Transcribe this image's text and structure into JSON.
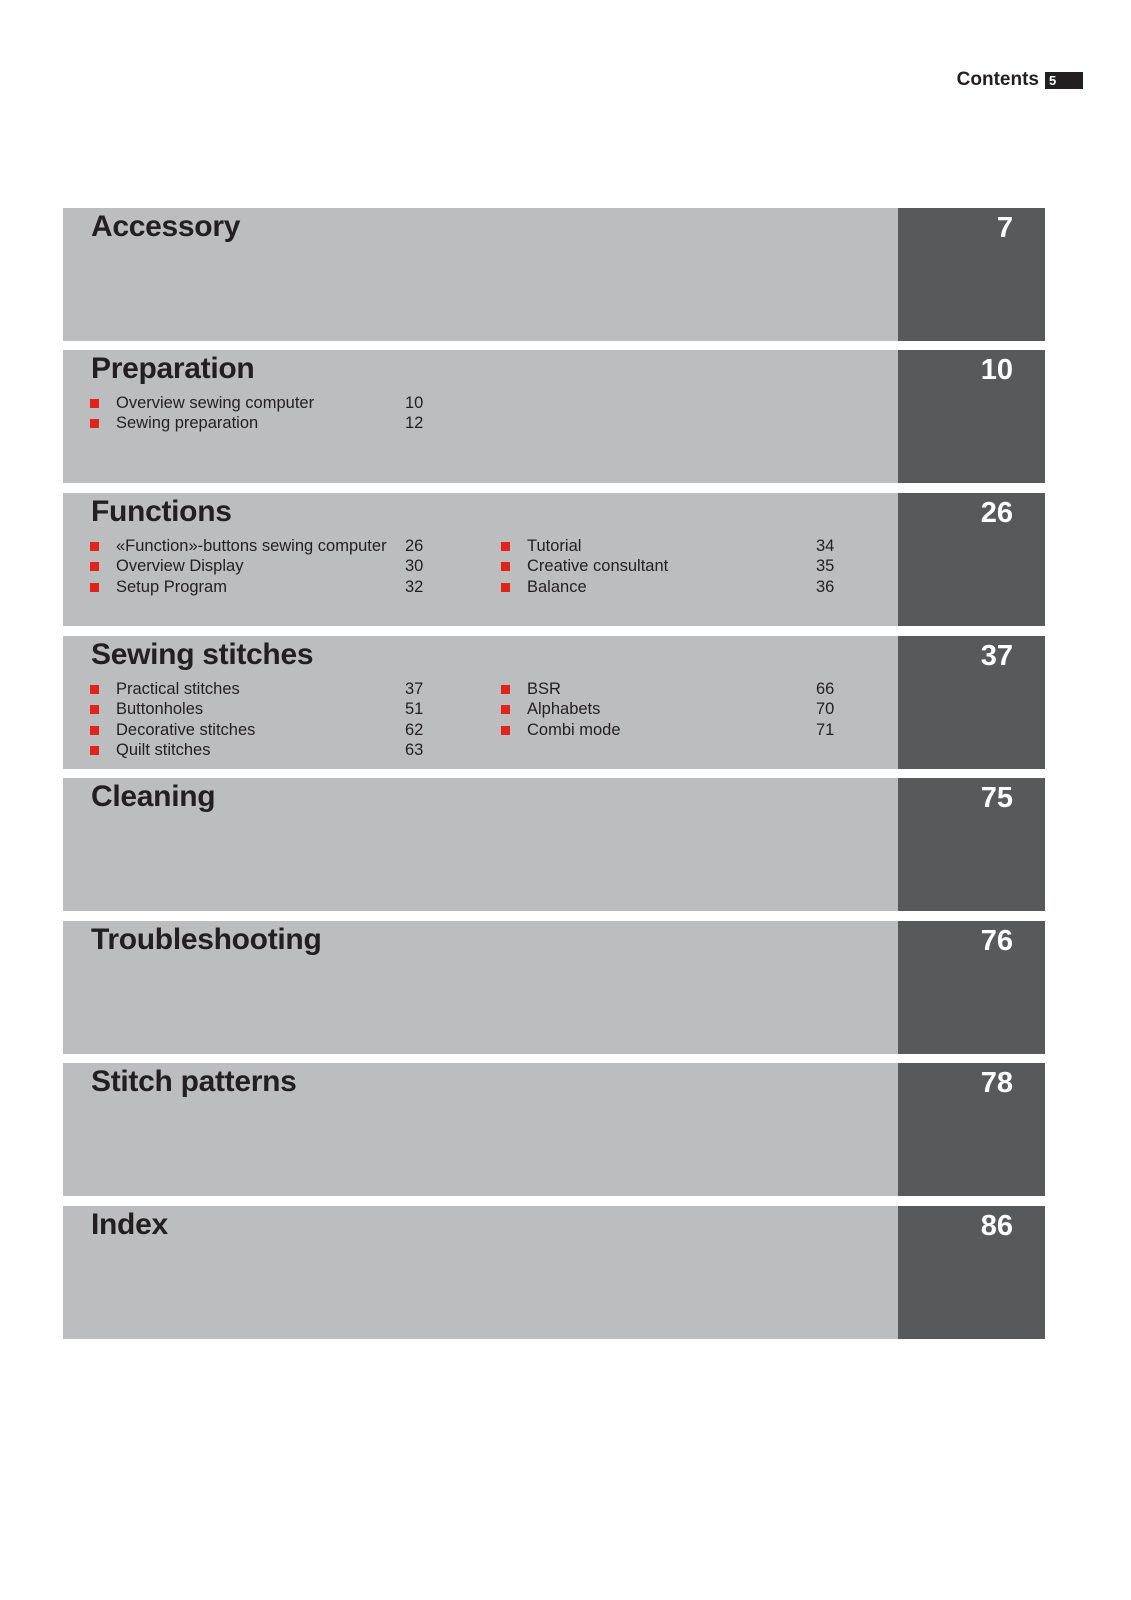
{
  "header": {
    "title": "Contents",
    "page": "5"
  },
  "accent_color": "#e2231a",
  "sections": [
    {
      "title": "Accessory",
      "page": "7",
      "cols": [
        [],
        []
      ]
    },
    {
      "title": "Preparation",
      "page": "10",
      "cols": [
        [
          {
            "label": "Overview sewing computer",
            "page": "10"
          },
          {
            "label": "Sewing preparation",
            "page": "12"
          }
        ],
        []
      ]
    },
    {
      "title": "Functions",
      "page": "26",
      "cols": [
        [
          {
            "label": "«Function»-buttons sewing computer",
            "page": "26"
          },
          {
            "label": "Overview Display",
            "page": "30"
          },
          {
            "label": "Setup Program",
            "page": "32"
          }
        ],
        [
          {
            "label": "Tutorial",
            "page": "34"
          },
          {
            "label": "Creative consultant",
            "page": "35"
          },
          {
            "label": "Balance",
            "page": "36"
          }
        ]
      ]
    },
    {
      "title": "Sewing stitches",
      "page": "37",
      "cols": [
        [
          {
            "label": "Practical stitches",
            "page": "37"
          },
          {
            "label": "Buttonholes",
            "page": "51"
          },
          {
            "label": "Decorative stitches",
            "page": "62"
          },
          {
            "label": "Quilt stitches",
            "page": "63"
          }
        ],
        [
          {
            "label": "BSR",
            "page": "66"
          },
          {
            "label": "Alphabets",
            "page": "70"
          },
          {
            "label": "Combi mode",
            "page": "71"
          }
        ]
      ]
    },
    {
      "title": "Cleaning",
      "page": "75",
      "cols": [
        [],
        []
      ]
    },
    {
      "title": "Troubleshooting",
      "page": "76",
      "cols": [
        [],
        []
      ]
    },
    {
      "title": "Stitch patterns",
      "page": "78",
      "cols": [
        [],
        []
      ]
    },
    {
      "title": "Index",
      "page": "86",
      "cols": [
        [],
        []
      ]
    }
  ]
}
